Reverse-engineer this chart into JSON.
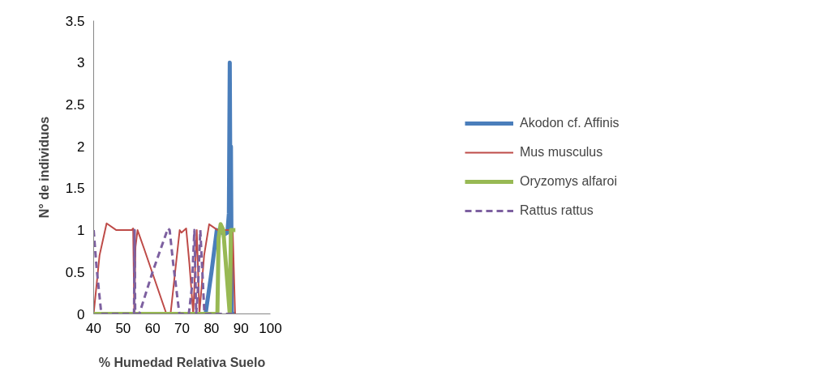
{
  "chart_data": {
    "type": "line",
    "xlabel": "% Humedad Relativa Suelo",
    "ylabel": "N° de individuos",
    "xlim": [
      40,
      100
    ],
    "xticks": [
      40,
      50,
      60,
      70,
      80,
      90,
      100
    ],
    "ylim": [
      0,
      3.5
    ],
    "yticks": [
      0,
      0.5,
      1,
      1.5,
      2,
      2.5,
      3,
      3.5
    ],
    "grid": false,
    "legend": "right",
    "marker": "none",
    "series": [
      {
        "name": "Akodon cf. Affinis",
        "color": "#4a7ebb",
        "line_style": "solid",
        "x": [
          40,
          78.0,
          80,
          81.8,
          83,
          84.5,
          85.4,
          85.9,
          86.2,
          86.4,
          86.6,
          86.9,
          88.2
        ],
        "values": [
          0,
          0,
          0.5,
          1.0,
          0.98,
          0.95,
          0.97,
          1.2,
          3.0,
          1.5,
          2.0,
          0,
          0
        ]
      },
      {
        "name": "Mus musculus",
        "color": "#be4b48",
        "line_style": "solid",
        "x": [
          40,
          42,
          44.4,
          47.7,
          52.9,
          53.4,
          53.8,
          54.2,
          54.9,
          57,
          64.7,
          66.1,
          69.2,
          69.8,
          71.4,
          72.5,
          73.8,
          75.0,
          75.9,
          77.5,
          79.2,
          82.1,
          86.3,
          86.6,
          87.2,
          88.0
        ],
        "values": [
          0,
          0.7,
          1.08,
          1.0,
          1.0,
          1.02,
          0,
          0.8,
          1.0,
          0.79,
          0,
          0,
          1.0,
          0.97,
          1.02,
          0.6,
          0,
          1.0,
          0,
          0.7,
          1.07,
          1.0,
          1.0,
          0,
          1.0,
          0
        ]
      },
      {
        "name": "Oryzomys alfaroi",
        "color": "#98b954",
        "line_style": "solid",
        "x": [
          40,
          78,
          82.0,
          82.4,
          83.1,
          84.0,
          86.2,
          86.6,
          88.1
        ],
        "values": [
          0,
          0,
          0,
          0.9,
          1.07,
          1.0,
          0,
          1.0,
          1.0
        ]
      },
      {
        "name": "Rattus rattus",
        "color": "#7d60a0",
        "line_style": "dashed",
        "x": [
          40,
          41,
          42.6,
          48,
          53.7,
          53.9,
          54.1,
          55.5,
          60,
          65.2,
          65.8,
          67,
          69.1,
          72.3,
          73.3,
          74.2,
          74.8,
          75.4,
          76.2,
          77.6,
          88.0
        ],
        "values": [
          1,
          0.55,
          0,
          0,
          0,
          1,
          0,
          0,
          0.5,
          1.02,
          1.0,
          0.6,
          0,
          0,
          0.3,
          1,
          0,
          0.3,
          1,
          0,
          0
        ]
      }
    ]
  }
}
